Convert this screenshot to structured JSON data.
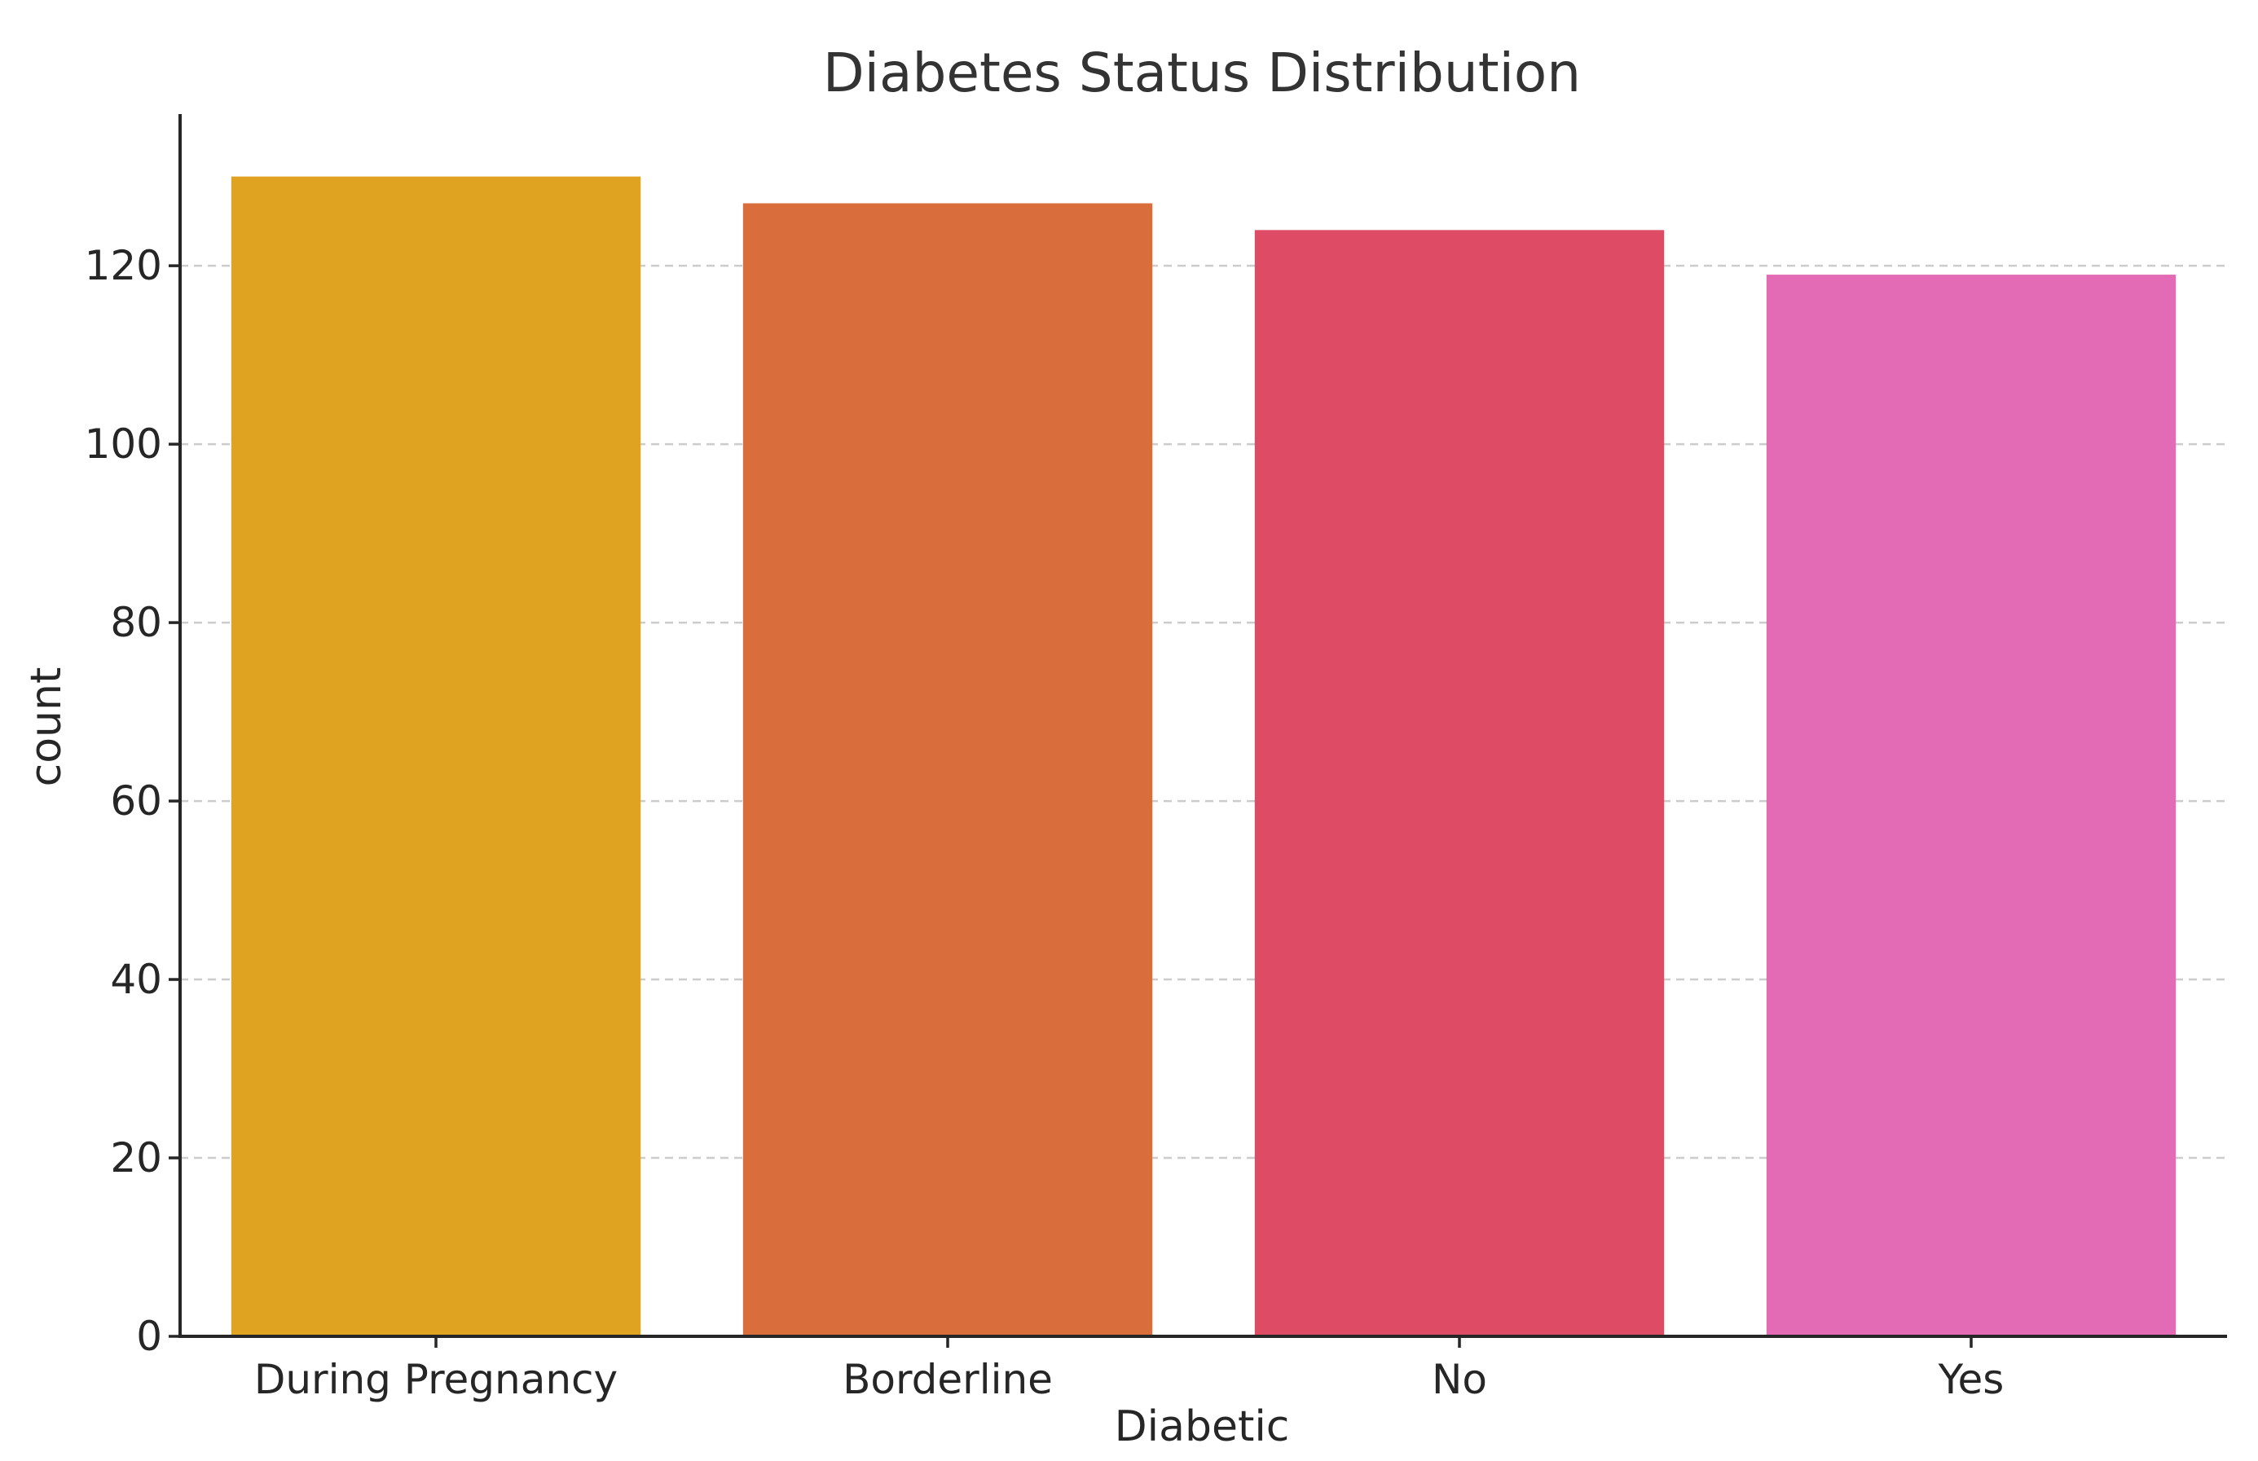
{
  "chart_data": {
    "type": "bar",
    "title": "Diabetes Status Distribution",
    "xlabel": "Diabetic",
    "ylabel": "count",
    "categories": [
      "During Pregnancy",
      "Borderline",
      "No",
      "Yes"
    ],
    "values": [
      130,
      127,
      124,
      119
    ],
    "colors": [
      "#DFA221",
      "#D96E3C",
      "#DD4B64",
      "#E36BB5"
    ],
    "ylim": [
      0,
      137
    ],
    "yticks": [
      0,
      20,
      40,
      60,
      80,
      100,
      120
    ],
    "grid": true,
    "grid_axis": "y",
    "legend": false
  }
}
